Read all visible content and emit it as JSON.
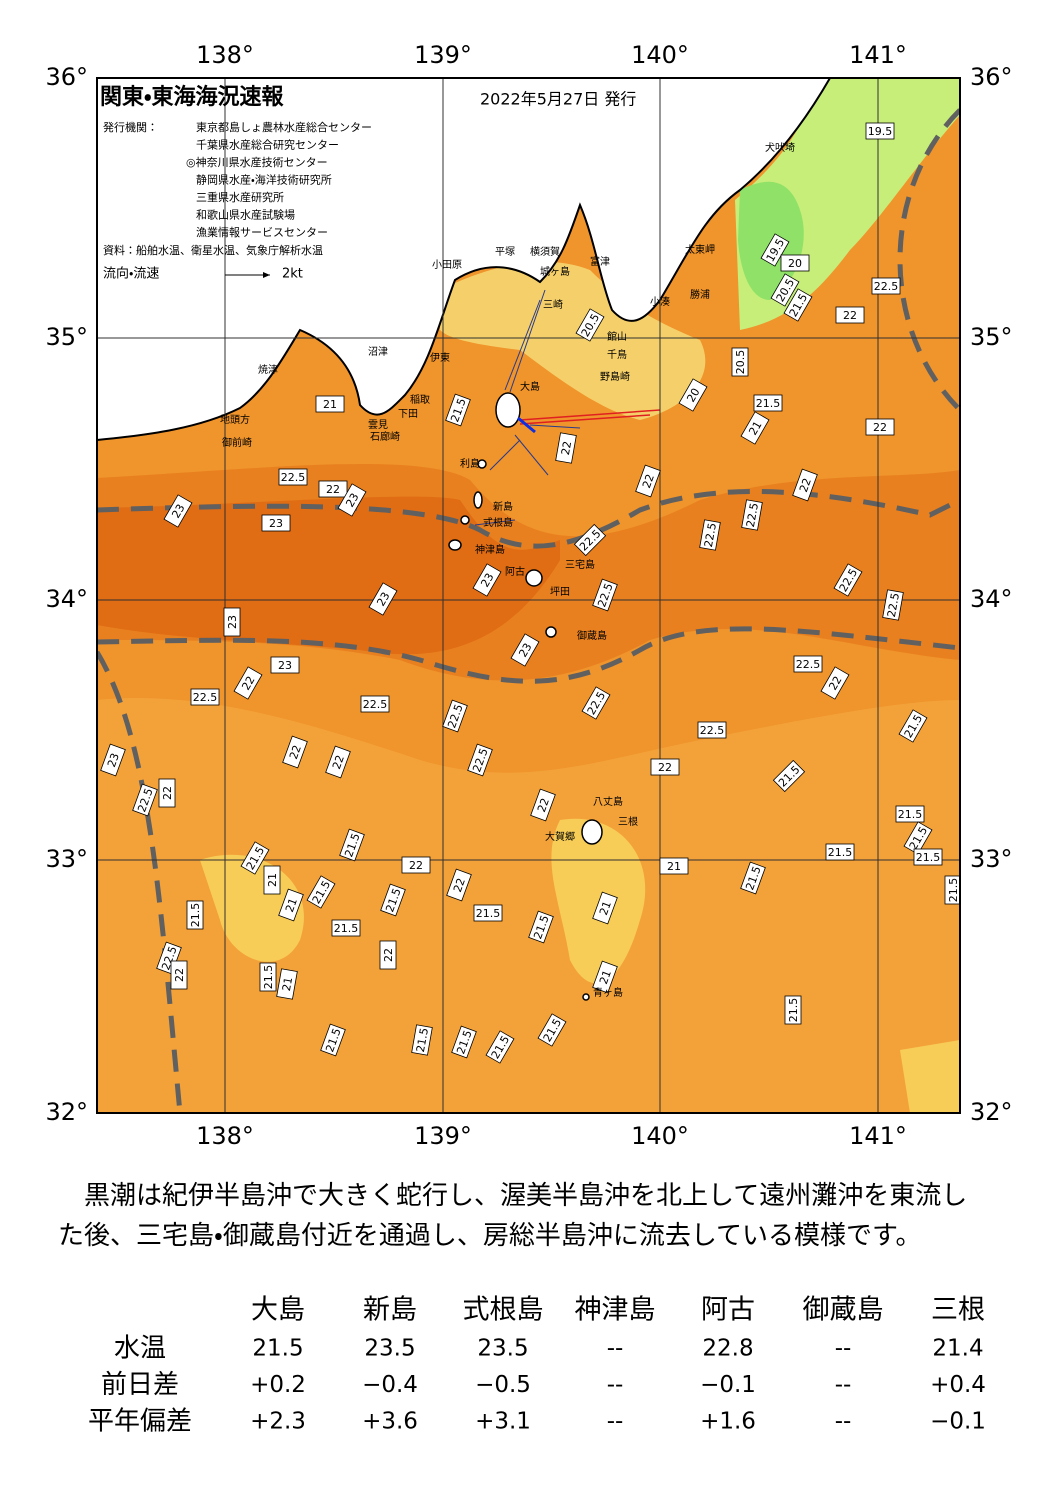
{
  "header": {
    "title": "関東・東海海況速報",
    "date": "2022年5月27日 発行",
    "issuer_label": "発行機関：",
    "issuers": [
      "東京都島しょ農林水産総合センター",
      "千葉県水産総合研究センター",
      "◎神奈川県水産技術センター",
      "静岡県水産・海洋技術研究所",
      "三重県水産研究所",
      "和歌山県水産試験場",
      "漁業情報サービスセンター"
    ],
    "source": "資料：船舶水温、衛星水温、気象庁解析水温",
    "current_label": "流向・流速",
    "scale_label": "2kt"
  },
  "axes": {
    "lon_top": [
      "138°",
      "139°",
      "140°",
      "141°"
    ],
    "lon_bottom": [
      "138°",
      "139°",
      "140°",
      "141°"
    ],
    "lat_left": [
      "36°",
      "35°",
      "34°",
      "33°",
      "32°"
    ],
    "lat_right": [
      "36°",
      "35°",
      "34°",
      "33°",
      "32°"
    ]
  },
  "place_names": [
    "犬吠埼",
    "太東岬",
    "勝浦",
    "小湊",
    "館山",
    "千鳥",
    "野島崎",
    "富津",
    "横須賀",
    "城ヶ島",
    "三崎",
    "平塚",
    "小田原",
    "沼津",
    "伊東",
    "焼津",
    "稲取",
    "下田",
    "雲見",
    "石廊崎",
    "地頭方",
    "御前崎",
    "大島",
    "利島",
    "新島",
    "式根島",
    "神津島",
    "阿古",
    "三宅島",
    "坪田",
    "御蔵島",
    "八丈島",
    "三根",
    "大賀郷",
    "青ヶ島"
  ],
  "contour_labels": [
    19.5,
    19.5,
    20,
    20.5,
    21.5,
    22.5,
    22,
    20.5,
    20.5,
    20,
    21.5,
    21,
    22,
    21.5,
    21,
    22.5,
    22,
    23,
    23,
    23,
    22,
    22,
    22,
    22.5,
    22.5,
    22.5,
    22.5,
    22.5,
    22.5,
    23,
    23,
    23,
    23,
    23,
    22.5,
    22,
    22.5,
    22,
    22.5,
    22.5,
    22.5,
    22.5,
    22.5,
    21.5,
    22,
    22,
    22,
    21.5,
    23,
    22.5,
    22,
    22,
    21.5,
    21.5,
    21.5,
    21.5,
    22,
    21.5,
    21.5,
    21,
    21,
    21.5,
    22,
    21.5,
    21,
    21.5,
    21,
    21.5,
    21.5,
    21.5,
    21.5,
    21.5,
    22,
    22.5,
    22,
    21.5,
    21,
    21,
    21.5,
    21.5,
    21.5,
    21.5,
    21.5,
    21.5
  ],
  "description": "黒潮は紀伊半島沖で大きく蛇行し、渥美半島沖を北上して遠州灘沖を東流した後、三宅島・御蔵島付近を通過し、房総半島沖に流去している模様です。",
  "table": {
    "columns": [
      "大島",
      "新島",
      "式根島",
      "神津島",
      "阿古",
      "御蔵島",
      "三根"
    ],
    "rows": [
      {
        "label": "水温",
        "values": [
          "21.5",
          "23.5",
          "23.5",
          "--",
          "22.8",
          "--",
          "21.4"
        ]
      },
      {
        "label": "前日差",
        "values": [
          "+0.2",
          "−0.4",
          "−0.5",
          "--",
          "−0.1",
          "--",
          "+0.4"
        ]
      },
      {
        "label": "平年偏差",
        "values": [
          "+2.3",
          "+3.6",
          "+3.1",
          "--",
          "+1.6",
          "--",
          "−0.1"
        ]
      }
    ]
  }
}
